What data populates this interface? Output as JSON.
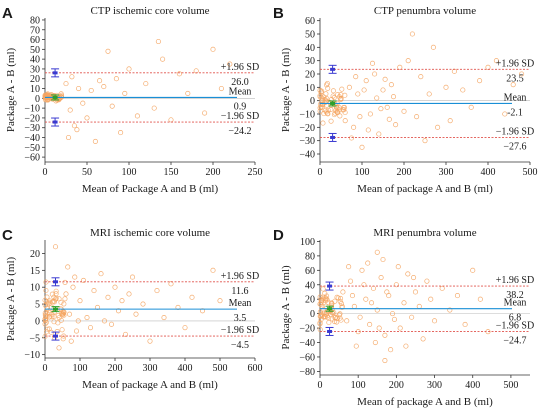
{
  "chart_data": [
    {
      "type": "scatter",
      "panel_letter": "A",
      "title": "CTP ischemic core volume",
      "xlabel": "Mean of Package A and B (ml)",
      "ylabel": "Package A - B (ml)",
      "xlim": [
        0,
        250
      ],
      "ylim": [
        -65,
        82
      ],
      "xticks": [
        0,
        50,
        100,
        150,
        200,
        250
      ],
      "yticks": [
        -60,
        -50,
        -40,
        -30,
        -20,
        -10,
        0,
        10,
        20,
        30,
        40,
        50,
        60,
        70,
        80
      ],
      "mean": 0.9,
      "upper_loa": 26.0,
      "lower_loa": -24.2,
      "annotations": {
        "upper_label": "+1.96 SD",
        "upper_value": "26.0",
        "mean_label": "Mean",
        "mean_value": "0.9",
        "lower_label": "-1.96 SD",
        "lower_value": "-24.2"
      },
      "ci_x": 12,
      "cluster": {
        "x_range": [
          0,
          20
        ],
        "y_spread": 2.5
      },
      "points": [
        [
          30,
          -12
        ],
        [
          35,
          -28
        ],
        [
          40,
          10
        ],
        [
          45,
          -5
        ],
        [
          50,
          -20
        ],
        [
          55,
          8
        ],
        [
          60,
          -44
        ],
        [
          65,
          18
        ],
        [
          70,
          12
        ],
        [
          75,
          48
        ],
        [
          80,
          -8
        ],
        [
          85,
          20
        ],
        [
          90,
          -35
        ],
        [
          95,
          5
        ],
        [
          100,
          30
        ],
        [
          110,
          -18
        ],
        [
          120,
          15
        ],
        [
          130,
          -10
        ],
        [
          135,
          58
        ],
        [
          140,
          40
        ],
        [
          150,
          -22
        ],
        [
          160,
          25
        ],
        [
          170,
          5
        ],
        [
          180,
          28
        ],
        [
          190,
          -15
        ],
        [
          200,
          50
        ],
        [
          210,
          10
        ],
        [
          220,
          35
        ],
        [
          25,
          15
        ],
        [
          28,
          -40
        ],
        [
          32,
          22
        ],
        [
          38,
          -32
        ]
      ],
      "colors": {
        "points": "#f4a460",
        "limit_line": "#e0524b",
        "mean_line": "#1a8fd6",
        "mean_marker": "#2ca02c",
        "loa_ci": "#3a3ad0",
        "zero_line": "#bbbbbb"
      }
    },
    {
      "type": "scatter",
      "panel_letter": "B",
      "title": "CTP penumbra volume",
      "xlabel": "Mean of package A and B (ml)",
      "ylabel": "Package A - B (ml)",
      "xlim": [
        0,
        500
      ],
      "ylim": [
        -46,
        62
      ],
      "xticks": [
        0,
        100,
        200,
        300,
        400,
        500
      ],
      "yticks": [
        -40,
        -30,
        -20,
        -10,
        0,
        10,
        20,
        30,
        40,
        50,
        60
      ],
      "mean": -2.1,
      "upper_loa": 23.5,
      "lower_loa": -27.6,
      "annotations": {
        "upper_label": "+1.96 SD",
        "upper_value": "23.5",
        "mean_label": "Mean",
        "mean_value": "-2.1",
        "lower_label": "-1.96 SD",
        "lower_value": "-27.6"
      },
      "ci_x": 30,
      "cluster": {
        "x_range": [
          0,
          60
        ],
        "y_spread": 10
      },
      "points": [
        [
          60,
          -15
        ],
        [
          70,
          10
        ],
        [
          80,
          -20
        ],
        [
          90,
          5
        ],
        [
          100,
          -35
        ],
        [
          110,
          15
        ],
        [
          120,
          -10
        ],
        [
          130,
          20
        ],
        [
          140,
          -25
        ],
        [
          150,
          8
        ],
        [
          160,
          -5
        ],
        [
          170,
          12
        ],
        [
          180,
          -18
        ],
        [
          190,
          25
        ],
        [
          200,
          -8
        ],
        [
          210,
          30
        ],
        [
          220,
          50
        ],
        [
          230,
          -12
        ],
        [
          240,
          18
        ],
        [
          250,
          -30
        ],
        [
          260,
          5
        ],
        [
          270,
          40
        ],
        [
          280,
          -20
        ],
        [
          300,
          10
        ],
        [
          310,
          -15
        ],
        [
          320,
          22
        ],
        [
          340,
          8
        ],
        [
          360,
          -5
        ],
        [
          380,
          15
        ],
        [
          400,
          25
        ],
        [
          420,
          30
        ],
        [
          440,
          -10
        ],
        [
          460,
          12
        ],
        [
          480,
          20
        ],
        [
          75,
          -28
        ],
        [
          85,
          18
        ],
        [
          95,
          -12
        ],
        [
          105,
          8
        ],
        [
          115,
          -22
        ],
        [
          125,
          28
        ],
        [
          135,
          2
        ],
        [
          145,
          -6
        ],
        [
          155,
          16
        ],
        [
          165,
          -14
        ],
        [
          175,
          3
        ]
      ],
      "colors": {
        "points": "#f4a460",
        "limit_line": "#e0524b",
        "mean_line": "#1a8fd6",
        "mean_marker": "#2ca02c",
        "loa_ci": "#3a3ad0",
        "zero_line": "#bbbbbb"
      }
    },
    {
      "type": "scatter",
      "panel_letter": "C",
      "title": "MRI ischemic core volume",
      "xlabel": "Mean of package A and B (ml)",
      "ylabel": "Package A - B (ml)",
      "xlim": [
        0,
        600
      ],
      "ylim": [
        -11,
        24
      ],
      "xticks": [
        0,
        100,
        200,
        300,
        400,
        500,
        600
      ],
      "yticks": [
        -10,
        -5,
        0,
        5,
        10,
        15,
        20
      ],
      "mean": 3.5,
      "upper_loa": 11.6,
      "lower_loa": -4.5,
      "annotations": {
        "upper_label": "+1.96 SD",
        "upper_value": "11.6",
        "mean_label": "Mean",
        "mean_value": "3.5",
        "lower_label": "-1.96 SD",
        "lower_value": "-4.5"
      },
      "ci_x": 30,
      "cluster": {
        "x_range": [
          0,
          60
        ],
        "y_spread": 6
      },
      "points": [
        [
          60,
          8
        ],
        [
          70,
          2
        ],
        [
          80,
          10
        ],
        [
          90,
          -3
        ],
        [
          100,
          6
        ],
        [
          110,
          12
        ],
        [
          120,
          1
        ],
        [
          130,
          -2
        ],
        [
          140,
          9
        ],
        [
          150,
          4
        ],
        [
          160,
          14
        ],
        [
          170,
          0
        ],
        [
          180,
          7
        ],
        [
          190,
          -1
        ],
        [
          200,
          10
        ],
        [
          210,
          3
        ],
        [
          220,
          6
        ],
        [
          230,
          -4
        ],
        [
          240,
          8
        ],
        [
          250,
          13
        ],
        [
          260,
          2
        ],
        [
          280,
          5
        ],
        [
          300,
          -6
        ],
        [
          320,
          9
        ],
        [
          340,
          1
        ],
        [
          360,
          11
        ],
        [
          380,
          4
        ],
        [
          400,
          -2
        ],
        [
          420,
          7
        ],
        [
          450,
          3
        ],
        [
          480,
          15
        ],
        [
          500,
          6
        ],
        [
          30,
          22
        ],
        [
          40,
          -8
        ],
        [
          65,
          16
        ],
        [
          75,
          -6
        ],
        [
          85,
          13
        ],
        [
          95,
          0
        ]
      ],
      "colors": {
        "points": "#f4a460",
        "limit_line": "#e0524b",
        "mean_line": "#1a8fd6",
        "mean_marker": "#2ca02c",
        "loa_ci": "#3a3ad0",
        "zero_line": "#bbbbbb"
      }
    },
    {
      "type": "scatter",
      "panel_letter": "D",
      "title": "MRI penumbra volume",
      "xlabel": "Mean of package A and B (ml)",
      "ylabel": "Package A - B (ml)",
      "xlim": [
        0,
        550
      ],
      "ylim": [
        -85,
        102
      ],
      "xticks": [
        0,
        100,
        200,
        300,
        400,
        500
      ],
      "yticks": [
        -80,
        -60,
        -40,
        -20,
        0,
        20,
        40,
        60,
        80,
        100
      ],
      "mean": 6.8,
      "upper_loa": 38.2,
      "lower_loa": -24.7,
      "annotations": {
        "upper_label": "+1.96 SD",
        "upper_value": "38.2",
        "mean_label": "Mean",
        "mean_value": "6.8",
        "lower_label": "-1.96 SD",
        "lower_value": "-24.7"
      },
      "ci_x": 25,
      "cluster": {
        "x_range": [
          0,
          60
        ],
        "y_spread": 20
      },
      "points": [
        [
          60,
          30
        ],
        [
          70,
          -10
        ],
        [
          80,
          45
        ],
        [
          90,
          10
        ],
        [
          100,
          -25
        ],
        [
          110,
          60
        ],
        [
          120,
          20
        ],
        [
          130,
          -15
        ],
        [
          140,
          35
        ],
        [
          150,
          5
        ],
        [
          160,
          50
        ],
        [
          170,
          -30
        ],
        [
          180,
          25
        ],
        [
          190,
          0
        ],
        [
          200,
          40
        ],
        [
          210,
          -20
        ],
        [
          220,
          15
        ],
        [
          230,
          55
        ],
        [
          240,
          -5
        ],
        [
          250,
          30
        ],
        [
          260,
          10
        ],
        [
          270,
          -35
        ],
        [
          280,
          45
        ],
        [
          290,
          20
        ],
        [
          300,
          -10
        ],
        [
          320,
          35
        ],
        [
          340,
          5
        ],
        [
          360,
          25
        ],
        [
          380,
          -15
        ],
        [
          400,
          60
        ],
        [
          420,
          20
        ],
        [
          440,
          -25
        ],
        [
          170,
          -65
        ],
        [
          150,
          85
        ],
        [
          75,
          65
        ],
        [
          95,
          -45
        ],
        [
          125,
          70
        ],
        [
          145,
          -40
        ],
        [
          165,
          75
        ],
        [
          185,
          -50
        ],
        [
          205,
          65
        ],
        [
          225,
          -45
        ],
        [
          245,
          50
        ],
        [
          85,
          25
        ],
        [
          105,
          -5
        ],
        [
          115,
          40
        ],
        [
          135,
          15
        ],
        [
          155,
          -20
        ],
        [
          175,
          30
        ],
        [
          195,
          -8
        ]
      ],
      "colors": {
        "points": "#f4a460",
        "limit_line": "#e0524b",
        "mean_line": "#1a8fd6",
        "mean_marker": "#2ca02c",
        "loa_ci": "#3a3ad0",
        "zero_line": "#bbbbbb"
      }
    }
  ]
}
